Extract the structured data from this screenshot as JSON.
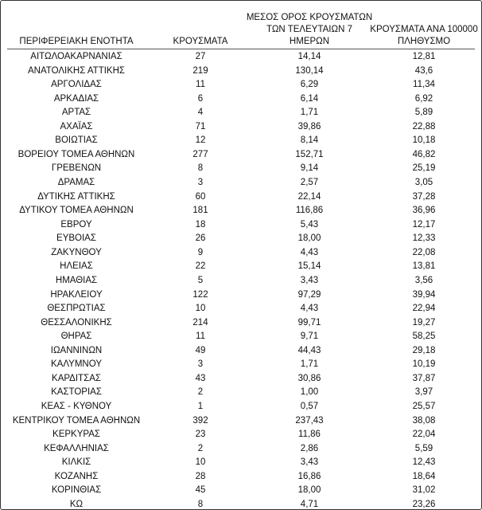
{
  "table": {
    "header": [
      [
        "ΠΕΡΙΦΕΡΕΙΑΚΗ ΕΝΟΤΗΤΑ"
      ],
      [
        "ΚΡΟΥΣΜΑΤΑ"
      ],
      [
        "ΜΕΣΟΣ ΟΡΟΣ ΚΡΟΥΣΜΑΤΩΝ",
        "ΤΩΝ ΤΕΛΕΥΤΑΙΩΝ 7",
        "ΗΜΕΡΩΝ"
      ],
      [
        "ΚΡΟΥΣΜΑΤΑ ΑΝΑ 100000",
        "ΠΛΗΘΥΣΜΟ"
      ]
    ],
    "rows": [
      [
        "ΑΙΤΩΛΟΑΚΑΡΝΑΝΙΑΣ",
        "27",
        "14,14",
        "12,81"
      ],
      [
        "ΑΝΑΤΟΛΙΚΗΣ ΑΤΤΙΚΗΣ",
        "219",
        "130,14",
        "43,6"
      ],
      [
        "ΑΡΓΟΛΙΔΑΣ",
        "11",
        "6,29",
        "11,34"
      ],
      [
        "ΑΡΚΑΔΙΑΣ",
        "6",
        "6,14",
        "6,92"
      ],
      [
        "ΑΡΤΑΣ",
        "4",
        "1,71",
        "5,89"
      ],
      [
        "ΑΧΑΪΑΣ",
        "71",
        "39,86",
        "22,88"
      ],
      [
        "ΒΟΙΩΤΙΑΣ",
        "12",
        "8,14",
        "10,18"
      ],
      [
        "ΒΟΡΕΙΟΥ ΤΟΜΕΑ ΑΘΗΝΩΝ",
        "277",
        "152,71",
        "46,82"
      ],
      [
        "ΓΡΕΒΕΝΩΝ",
        "8",
        "9,14",
        "25,19"
      ],
      [
        "ΔΡΑΜΑΣ",
        "3",
        "2,57",
        "3,05"
      ],
      [
        "ΔΥΤΙΚΗΣ ΑΤΤΙΚΗΣ",
        "60",
        "22,14",
        "37,28"
      ],
      [
        "ΔΥΤΙΚΟΥ ΤΟΜΕΑ ΑΘΗΝΩΝ",
        "181",
        "116,86",
        "36,96"
      ],
      [
        "ΕΒΡΟΥ",
        "18",
        "5,43",
        "12,17"
      ],
      [
        "ΕΥΒΟΙΑΣ",
        "26",
        "18,00",
        "12,33"
      ],
      [
        "ΖΑΚΥΝΘΟΥ",
        "9",
        "4,43",
        "22,08"
      ],
      [
        "ΗΛΕΙΑΣ",
        "22",
        "15,14",
        "13,81"
      ],
      [
        "ΗΜΑΘΙΑΣ",
        "5",
        "3,43",
        "3,56"
      ],
      [
        "ΗΡΑΚΛΕΙΟΥ",
        "122",
        "97,29",
        "39,94"
      ],
      [
        "ΘΕΣΠΡΩΤΙΑΣ",
        "10",
        "4,43",
        "22,94"
      ],
      [
        "ΘΕΣΣΑΛΟΝΙΚΗΣ",
        "214",
        "99,71",
        "19,27"
      ],
      [
        "ΘΗΡΑΣ",
        "11",
        "9,71",
        "58,25"
      ],
      [
        "ΙΩΑΝΝΙΝΩΝ",
        "49",
        "44,43",
        "29,18"
      ],
      [
        "ΚΑΛΥΜΝΟΥ",
        "3",
        "1,71",
        "10,19"
      ],
      [
        "ΚΑΡΔΙΤΣΑΣ",
        "43",
        "30,86",
        "37,87"
      ],
      [
        "ΚΑΣΤΟΡΙΑΣ",
        "2",
        "1,00",
        "3,97"
      ],
      [
        "ΚΕΑΣ - ΚΥΘΝΟΥ",
        "1",
        "0,57",
        "25,57"
      ],
      [
        "ΚΕΝΤΡΙΚΟΥ ΤΟΜΕΑ ΑΘΗΝΩΝ",
        "392",
        "237,43",
        "38,08"
      ],
      [
        "ΚΕΡΚΥΡΑΣ",
        "23",
        "11,86",
        "22,04"
      ],
      [
        "ΚΕΦΑΛΛΗΝΙΑΣ",
        "2",
        "2,86",
        "5,59"
      ],
      [
        "ΚΙΛΚΙΣ",
        "10",
        "3,43",
        "12,43"
      ],
      [
        "ΚΟΖΑΝΗΣ",
        "28",
        "16,86",
        "18,64"
      ],
      [
        "ΚΟΡΙΝΘΙΑΣ",
        "45",
        "18,00",
        "31,02"
      ],
      [
        "ΚΩ",
        "8",
        "4,71",
        "23,26"
      ]
    ]
  }
}
